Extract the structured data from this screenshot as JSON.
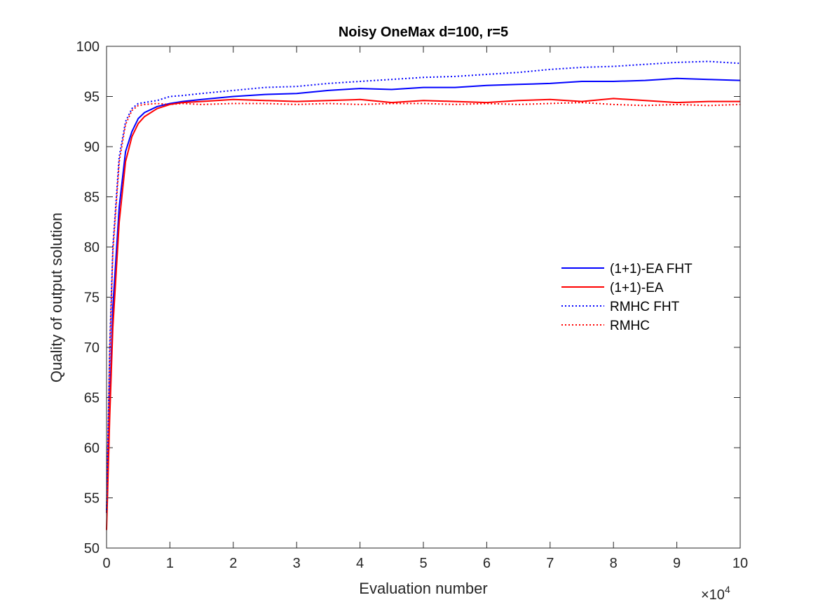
{
  "chart_data": {
    "type": "line",
    "title": "Noisy OneMax d=100, r=5",
    "xlabel": "Evaluation number",
    "ylabel": "Quality of output solution",
    "x_exponent_label": "×10",
    "x_exponent_power": "4",
    "xlim": [
      0,
      10
    ],
    "ylim": [
      50,
      100
    ],
    "xticks": [
      "0",
      "1",
      "2",
      "3",
      "4",
      "5",
      "6",
      "7",
      "8",
      "9",
      "10"
    ],
    "yticks": [
      "50",
      "55",
      "60",
      "65",
      "70",
      "75",
      "80",
      "85",
      "90",
      "95",
      "100"
    ],
    "grid": false,
    "legend_position": "right",
    "series": [
      {
        "name": "(1+1)-EA FHT",
        "color": "#0000ff",
        "style": "solid",
        "x": [
          0,
          0.05,
          0.1,
          0.2,
          0.3,
          0.4,
          0.5,
          0.6,
          0.8,
          1.0,
          1.2,
          1.5,
          2.0,
          2.5,
          3.0,
          3.5,
          4.0,
          4.5,
          5.0,
          5.5,
          6.0,
          6.5,
          7.0,
          7.5,
          8.0,
          8.5,
          9.0,
          9.5,
          10.0
        ],
        "y": [
          53.5,
          64,
          74,
          84,
          89.5,
          91.5,
          92.8,
          93.4,
          94.0,
          94.3,
          94.5,
          94.7,
          95.0,
          95.2,
          95.3,
          95.6,
          95.8,
          95.7,
          95.9,
          95.9,
          96.1,
          96.2,
          96.3,
          96.5,
          96.5,
          96.6,
          96.8,
          96.7,
          96.6
        ]
      },
      {
        "name": "(1+1)-EA",
        "color": "#ff0000",
        "style": "solid",
        "x": [
          0,
          0.05,
          0.1,
          0.2,
          0.3,
          0.4,
          0.5,
          0.6,
          0.8,
          1.0,
          1.2,
          1.5,
          2.0,
          2.5,
          3.0,
          3.5,
          4.0,
          4.5,
          5.0,
          5.5,
          6.0,
          6.5,
          7.0,
          7.5,
          8.0,
          8.5,
          9.0,
          9.5,
          10.0
        ],
        "y": [
          51.8,
          63,
          72,
          82.5,
          88.5,
          91.0,
          92.3,
          93.0,
          93.8,
          94.2,
          94.4,
          94.5,
          94.7,
          94.6,
          94.5,
          94.6,
          94.7,
          94.4,
          94.6,
          94.5,
          94.4,
          94.6,
          94.7,
          94.5,
          94.8,
          94.6,
          94.4,
          94.5,
          94.5
        ]
      },
      {
        "name": "RMHC FHT",
        "color": "#0000ff",
        "style": "dotted",
        "x": [
          0,
          0.05,
          0.1,
          0.2,
          0.3,
          0.4,
          0.5,
          0.6,
          0.8,
          1.0,
          1.2,
          1.5,
          2.0,
          2.5,
          3.0,
          3.5,
          4.0,
          4.5,
          5.0,
          5.5,
          6.0,
          6.5,
          7.0,
          7.5,
          8.0,
          8.5,
          9.0,
          9.5,
          10.0
        ],
        "y": [
          53.8,
          70,
          80,
          89,
          92.5,
          93.8,
          94.3,
          94.4,
          94.6,
          95.0,
          95.1,
          95.3,
          95.6,
          95.9,
          96.0,
          96.3,
          96.5,
          96.7,
          96.9,
          97.0,
          97.2,
          97.4,
          97.7,
          97.9,
          98.0,
          98.2,
          98.4,
          98.5,
          98.3
        ]
      },
      {
        "name": "RMHC",
        "color": "#ff0000",
        "style": "dotted",
        "x": [
          0,
          0.05,
          0.1,
          0.2,
          0.3,
          0.4,
          0.5,
          0.6,
          0.8,
          1.0,
          1.2,
          1.5,
          2.0,
          2.5,
          3.0,
          3.5,
          4.0,
          4.5,
          5.0,
          5.5,
          6.0,
          6.5,
          7.0,
          7.5,
          8.0,
          8.5,
          9.0,
          9.5,
          10.0
        ],
        "y": [
          53.6,
          69,
          79.5,
          88.5,
          92.2,
          93.6,
          94.1,
          94.2,
          94.3,
          94.2,
          94.3,
          94.2,
          94.3,
          94.3,
          94.2,
          94.3,
          94.2,
          94.3,
          94.3,
          94.2,
          94.3,
          94.2,
          94.3,
          94.4,
          94.2,
          94.1,
          94.2,
          94.1,
          94.2
        ]
      }
    ]
  }
}
